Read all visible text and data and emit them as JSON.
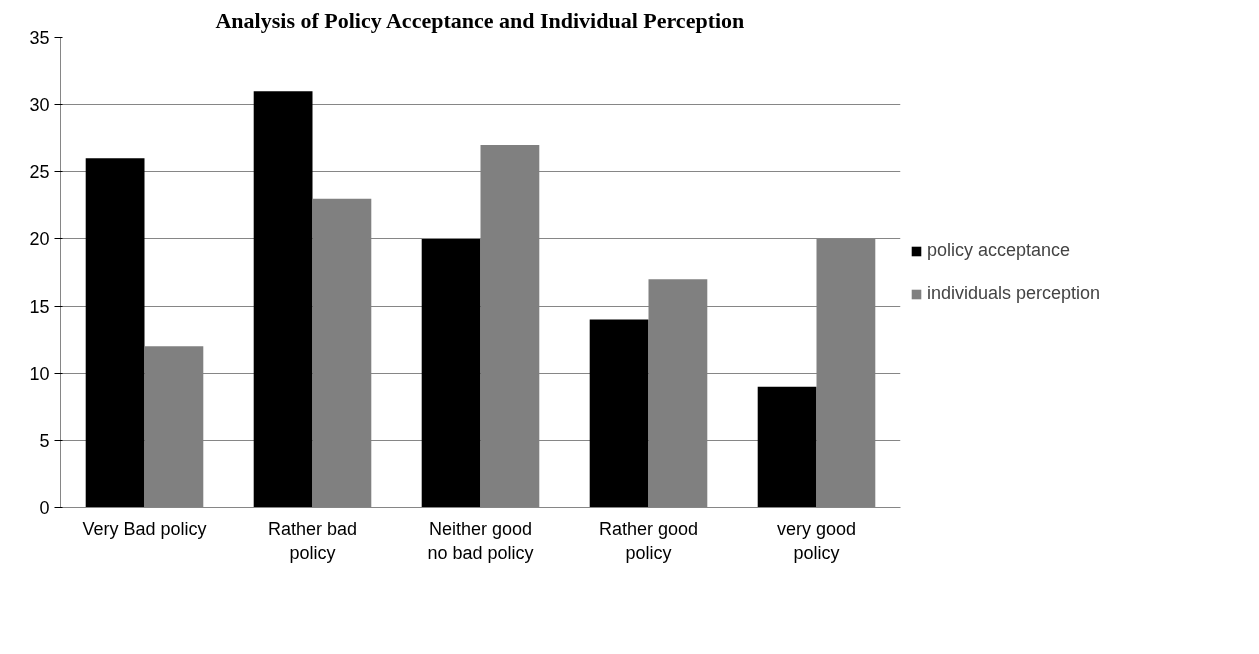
{
  "chart_data": {
    "type": "bar",
    "title": "Analysis of Policy Acceptance and Individual Perception",
    "categories": [
      "Very Bad policy",
      "Rather bad\npolicy",
      "Neither good\nno bad policy",
      "Rather good\npolicy",
      "very good\npolicy"
    ],
    "series": [
      {
        "name": "policy acceptance",
        "color": "#000000",
        "values": [
          26,
          31,
          20,
          14,
          9
        ]
      },
      {
        "name": "individuals perception",
        "color": "#808080",
        "values": [
          12,
          23,
          27,
          17,
          20
        ]
      }
    ],
    "ylim": [
      0,
      35
    ],
    "yticks": [
      0,
      5,
      10,
      15,
      20,
      25,
      30,
      35
    ],
    "grid": "y",
    "legend": "right"
  }
}
